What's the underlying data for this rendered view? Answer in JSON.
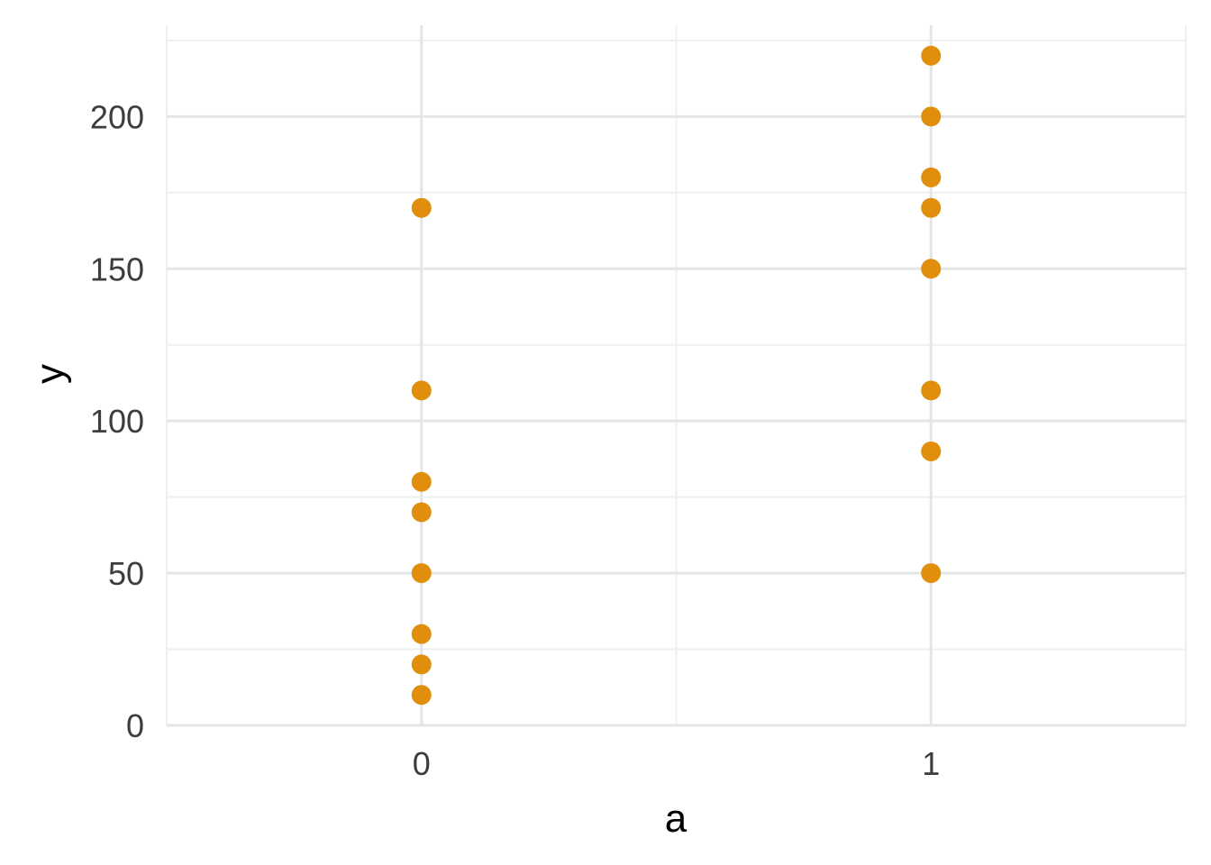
{
  "chart_data": {
    "type": "scatter",
    "xlabel": "a",
    "ylabel": "y",
    "x_categories": [
      "0",
      "1"
    ],
    "xlim": [
      -0.5,
      1.5
    ],
    "ylim": [
      0,
      230
    ],
    "y_ticks": [
      0,
      50,
      100,
      150,
      200
    ],
    "y_minor_ticks": [
      25,
      75,
      125,
      175,
      225
    ],
    "grid": true,
    "legend": "none",
    "point_color": "#E08E0B",
    "series": [
      {
        "points": [
          {
            "x": 0,
            "y": 170
          },
          {
            "x": 0,
            "y": 110
          },
          {
            "x": 0,
            "y": 80
          },
          {
            "x": 0,
            "y": 70
          },
          {
            "x": 0,
            "y": 50
          },
          {
            "x": 0,
            "y": 30
          },
          {
            "x": 0,
            "y": 20
          },
          {
            "x": 0,
            "y": 10
          },
          {
            "x": 1,
            "y": 220
          },
          {
            "x": 1,
            "y": 200
          },
          {
            "x": 1,
            "y": 180
          },
          {
            "x": 1,
            "y": 170
          },
          {
            "x": 1,
            "y": 150
          },
          {
            "x": 1,
            "y": 110
          },
          {
            "x": 1,
            "y": 90
          },
          {
            "x": 1,
            "y": 50
          }
        ]
      }
    ]
  }
}
